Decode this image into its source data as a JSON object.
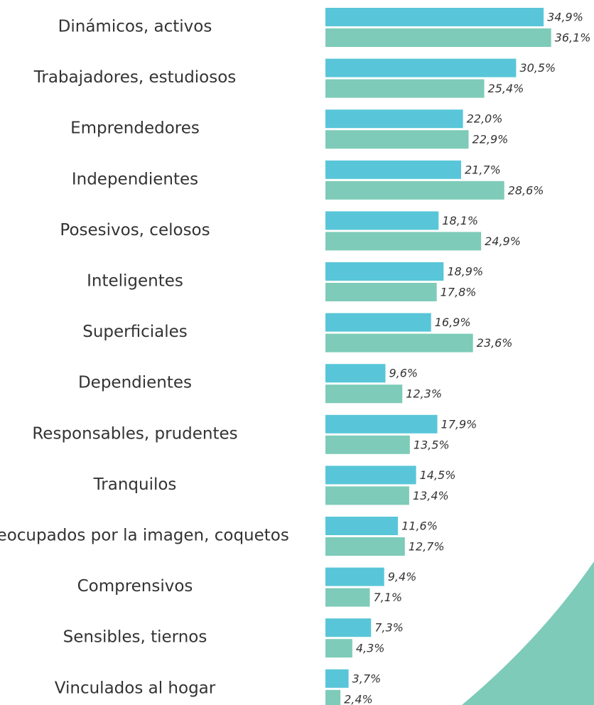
{
  "chart_data": {
    "type": "bar",
    "orientation": "horizontal",
    "categories": [
      "Dinámicos, activos",
      "Trabajadores, estudiosos",
      "Emprendedores",
      "Independientes",
      "Posesivos, celosos",
      "Inteligentes",
      "Superficiales",
      "Dependientes",
      "Responsables, prudentes",
      "Tranquilos",
      "Preocupados por la imagen, coquetos",
      "Comprensivos",
      "Sensibles, tiernos",
      "Vinculados al hogar"
    ],
    "series": [
      {
        "color": "#58c6d8",
        "values": [
          34.9,
          30.5,
          22.0,
          21.7,
          18.1,
          18.9,
          16.9,
          9.6,
          17.9,
          14.5,
          11.6,
          9.4,
          7.3,
          3.7
        ],
        "value_labels": [
          "34,9%",
          "30,5%",
          "22,0%",
          "21,7%",
          "18,1%",
          "18,9%",
          "16,9%",
          "9,6%",
          "17,9%",
          "14,5%",
          "11,6%",
          "9,4%",
          "7,3%",
          "3,7%"
        ]
      },
      {
        "color": "#7dcbb8",
        "values": [
          36.1,
          25.4,
          22.9,
          28.6,
          24.9,
          17.8,
          23.6,
          12.3,
          13.5,
          13.4,
          12.7,
          7.1,
          4.3,
          2.4
        ],
        "value_labels": [
          "36,1%",
          "25,4%",
          "22,9%",
          "28,6%",
          "24,9%",
          "17,8%",
          "23,6%",
          "12,3%",
          "13,5%",
          "13,4%",
          "12,7%",
          "7,1%",
          "4,3%",
          "2,4%"
        ]
      }
    ]
  }
}
